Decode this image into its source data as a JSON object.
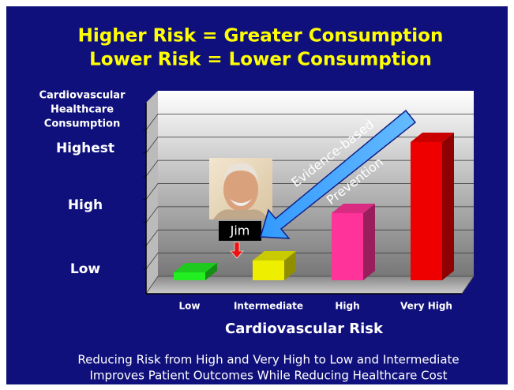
{
  "chart_data": {
    "type": "bar",
    "title": [
      "Higher Risk = Greater Consumption",
      "Lower Risk = Lower Consumption"
    ],
    "y_axis_title": [
      "Cardiovascular",
      "Healthcare",
      "Consumption"
    ],
    "x_axis_title": "Cardiovascular Risk",
    "categories": [
      "Low",
      "Intermediate",
      "High",
      "Very High"
    ],
    "values": [
      0.5,
      1.0,
      3.0,
      6.0
    ],
    "colors": [
      "#22ee22",
      "#eeee00",
      "#ff3399",
      "#ee0000"
    ],
    "ylim": [
      0,
      8
    ],
    "yticks": [
      {
        "value": 0.3,
        "label": "Low"
      },
      {
        "value": 3.0,
        "label": "High"
      },
      {
        "value": 5.4,
        "label": "Highest"
      }
    ],
    "annotations": {
      "arrow_text": [
        "Evidence-based",
        "Prevention"
      ],
      "person": "Jim"
    },
    "footer": [
      "Reducing Risk from High and Very High to Low and Intermediate",
      "Improves Patient Outcomes While Reducing Healthcare Cost"
    ]
  }
}
